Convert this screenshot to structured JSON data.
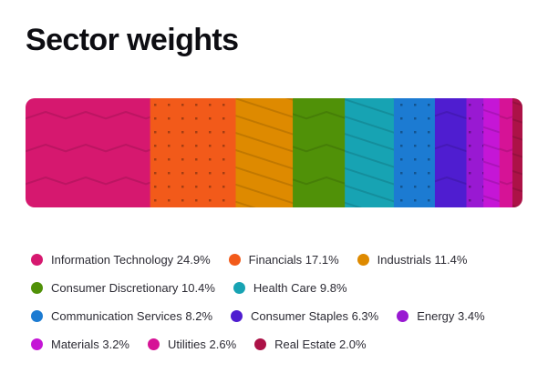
{
  "page": {
    "background": "#ffffff",
    "text_color": "#2b2a33",
    "title_color": "#0d0d12"
  },
  "chart_data": {
    "type": "bar",
    "variant": "single horizontal stacked bar",
    "title": "Sector weights",
    "unit": "%",
    "legend_position": "bottom",
    "grid": false,
    "axes_visible": false,
    "segments": [
      {
        "label": "Information Technology",
        "value": 24.9,
        "display": "Information Technology 24.9%",
        "color": "#D6186F",
        "pattern": "zigzag"
      },
      {
        "label": "Financials",
        "value": 17.1,
        "display": "Financials 17.1%",
        "color": "#F25A1A",
        "pattern": "dots"
      },
      {
        "label": "Industrials",
        "value": 11.4,
        "display": "Industrials 11.4%",
        "color": "#DE8A00",
        "pattern": "diag"
      },
      {
        "label": "Consumer Discretionary",
        "value": 10.4,
        "display": "Consumer Discretionary 10.4%",
        "color": "#509108",
        "pattern": "zigzag"
      },
      {
        "label": "Health Care",
        "value": 9.8,
        "display": "Health Care 9.8%",
        "color": "#17A3B3",
        "pattern": "diag"
      },
      {
        "label": "Communication Services",
        "value": 8.2,
        "display": "Communication Services 8.2%",
        "color": "#1C7BD2",
        "pattern": "dots"
      },
      {
        "label": "Consumer Staples",
        "value": 6.3,
        "display": "Consumer Staples 6.3%",
        "color": "#4F1DD0",
        "pattern": "zigzag"
      },
      {
        "label": "Energy",
        "value": 3.4,
        "display": "Energy 3.4%",
        "color": "#9919D2",
        "pattern": "dots"
      },
      {
        "label": "Materials",
        "value": 3.2,
        "display": "Materials 3.2%",
        "color": "#C516D6",
        "pattern": "diag"
      },
      {
        "label": "Utilities",
        "value": 2.6,
        "display": "Utilities 2.6%",
        "color": "#D61396",
        "pattern": "zigzag"
      },
      {
        "label": "Real Estate",
        "value": 2.0,
        "display": "Real Estate 2.0%",
        "color": "#AC1247",
        "pattern": "diag"
      }
    ]
  }
}
